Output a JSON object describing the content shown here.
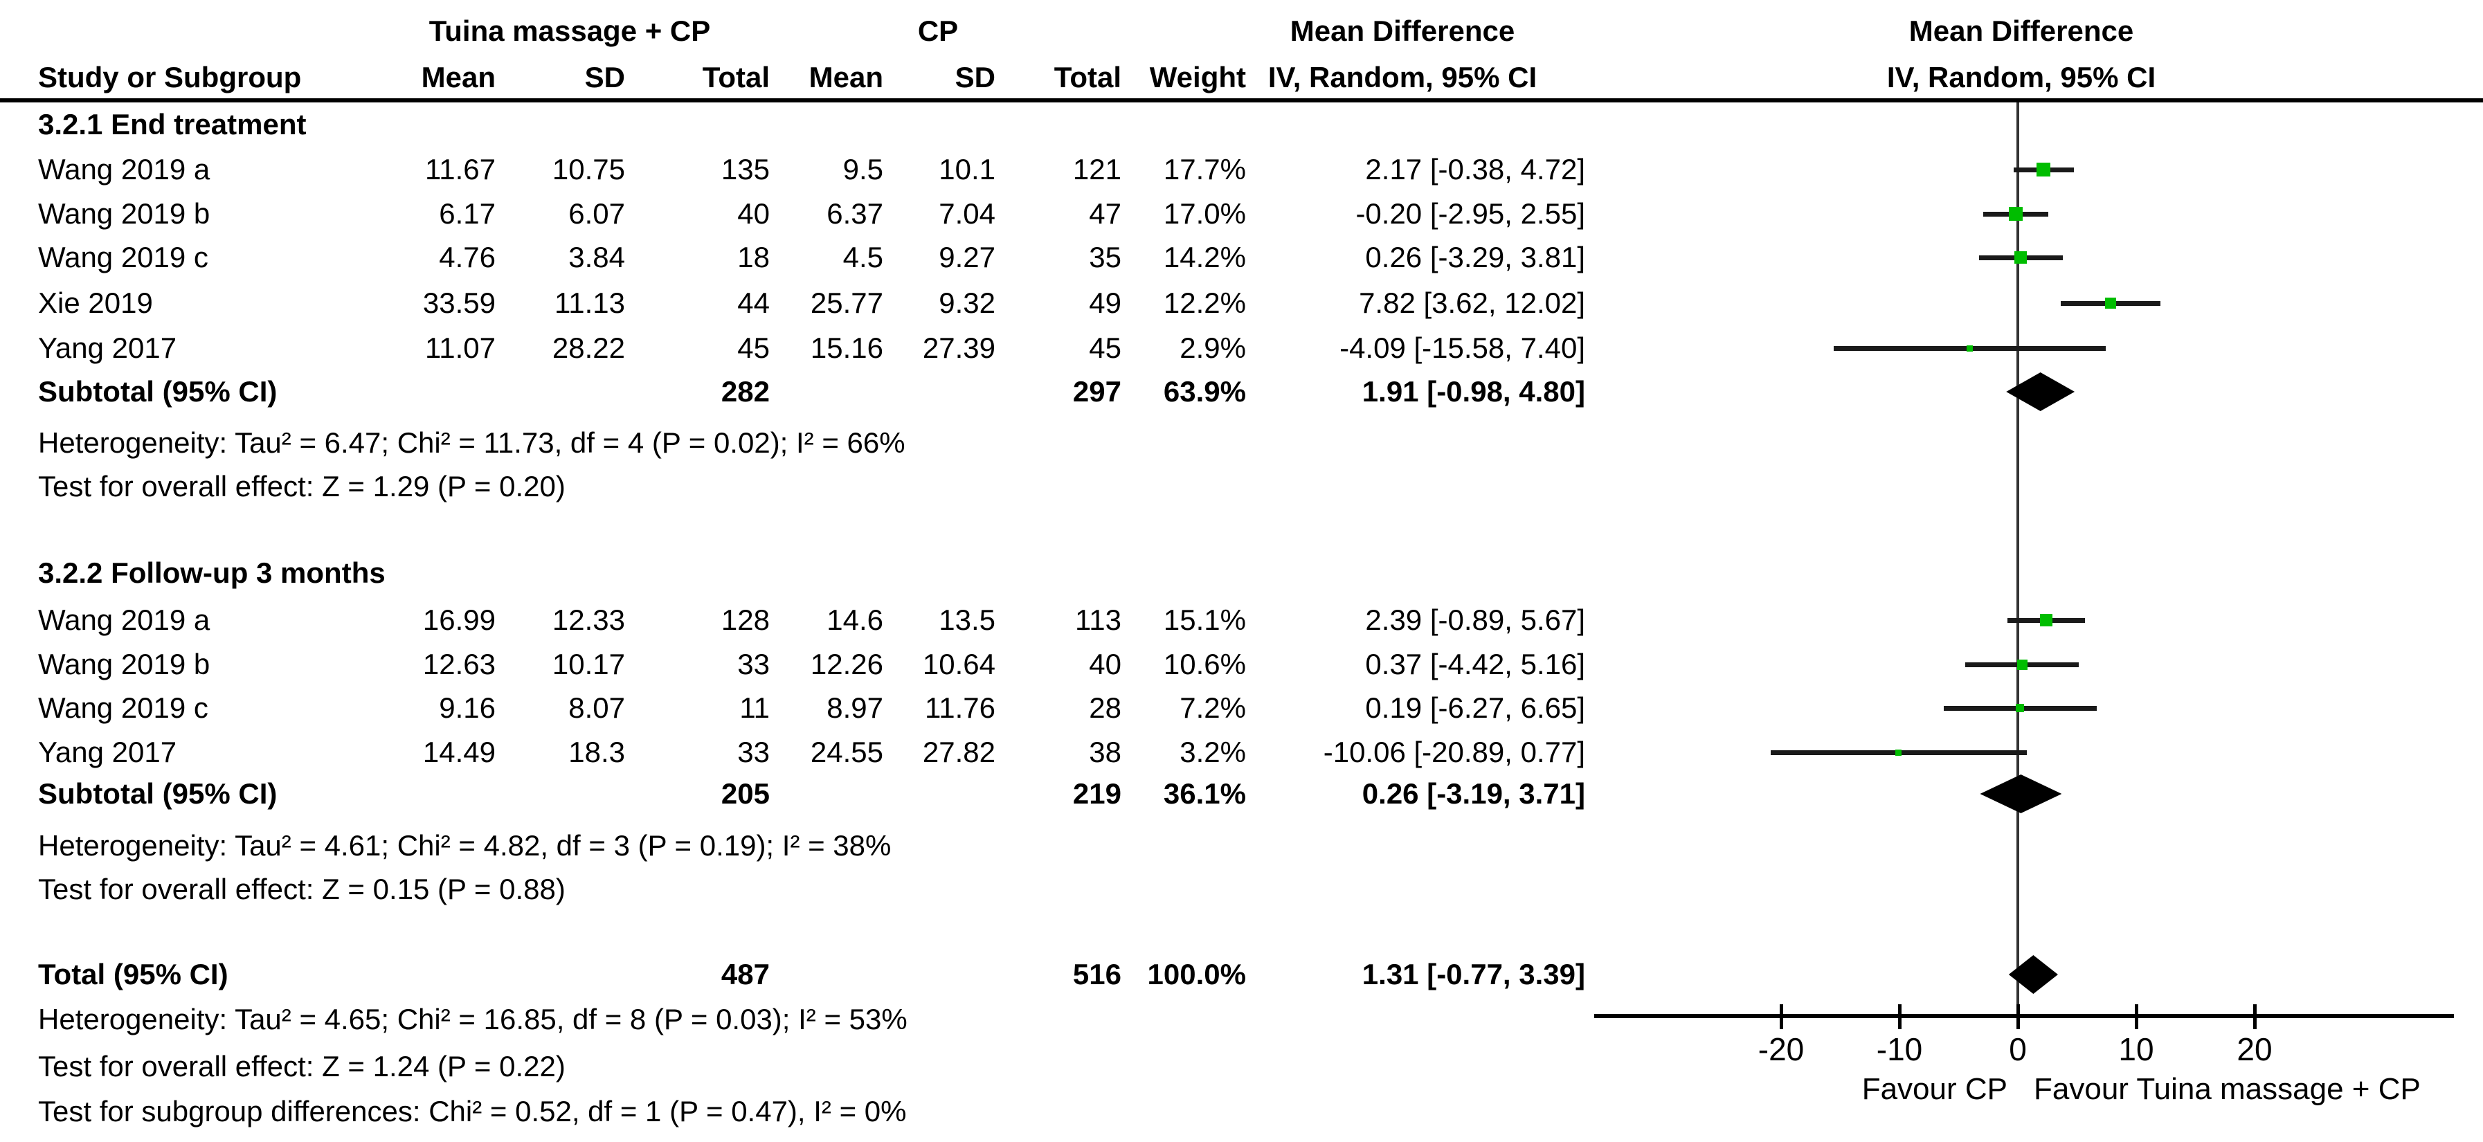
{
  "accent_colors": {
    "marker": "#00bd00",
    "diamond": "#000000",
    "line": "#1a1a1a"
  },
  "header": {
    "group_treatment": "Tuina massage + CP",
    "group_control": "CP",
    "group_effect": "Mean Difference",
    "study_col": "Study or Subgroup",
    "cols_treatment": [
      "Mean",
      "SD",
      "Total"
    ],
    "cols_control": [
      "Mean",
      "SD",
      "Total"
    ],
    "weight_col": "Weight",
    "effect_col": "IV, Random, 95% CI",
    "plot_title_line1": "Mean Difference",
    "plot_title_line2": "IV, Random, 95% CI"
  },
  "chart_data": {
    "type": "forest",
    "effect_measure": "Mean Difference, IV, Random, 95% CI",
    "axis": {
      "ticks": [
        {
          "v": -20,
          "label": "-20"
        },
        {
          "v": -10,
          "label": "-10"
        },
        {
          "v": 0,
          "label": "0"
        },
        {
          "v": 10,
          "label": "10"
        },
        {
          "v": 20,
          "label": "20"
        }
      ],
      "favour_left": "Favour CP",
      "favour_right": "Favour Tuina massage + CP"
    },
    "sections": [
      {
        "title": "3.2.1 End treatment",
        "studies": [
          {
            "name": "Wang 2019 a",
            "mean1": "11.67",
            "sd1": "10.75",
            "total1": "135",
            "mean2": "9.5",
            "sd2": "10.1",
            "total2": "121",
            "weight": "17.7%",
            "w": 17.7,
            "ci_text": "2.17 [-0.38, 4.72]",
            "md": 2.17,
            "lo": -0.38,
            "hi": 4.72
          },
          {
            "name": "Wang 2019 b",
            "mean1": "6.17",
            "sd1": "6.07",
            "total1": "40",
            "mean2": "6.37",
            "sd2": "7.04",
            "total2": "47",
            "weight": "17.0%",
            "w": 17.0,
            "ci_text": "-0.20 [-2.95, 2.55]",
            "md": -0.2,
            "lo": -2.95,
            "hi": 2.55
          },
          {
            "name": "Wang 2019 c",
            "mean1": "4.76",
            "sd1": "3.84",
            "total1": "18",
            "mean2": "4.5",
            "sd2": "9.27",
            "total2": "35",
            "weight": "14.2%",
            "w": 14.2,
            "ci_text": "0.26 [-3.29, 3.81]",
            "md": 0.26,
            "lo": -3.29,
            "hi": 3.81
          },
          {
            "name": "Xie 2019",
            "mean1": "33.59",
            "sd1": "11.13",
            "total1": "44",
            "mean2": "25.77",
            "sd2": "9.32",
            "total2": "49",
            "weight": "12.2%",
            "w": 12.2,
            "ci_text": "7.82 [3.62, 12.02]",
            "md": 7.82,
            "lo": 3.62,
            "hi": 12.02
          },
          {
            "name": "Yang 2017",
            "mean1": "11.07",
            "sd1": "28.22",
            "total1": "45",
            "mean2": "15.16",
            "sd2": "27.39",
            "total2": "45",
            "weight": "2.9%",
            "w": 2.9,
            "ci_text": "-4.09 [-15.58, 7.40]",
            "md": -4.09,
            "lo": -15.58,
            "hi": 7.4
          }
        ],
        "subtotal": {
          "label": "Subtotal (95% CI)",
          "total1": "282",
          "total2": "297",
          "weight": "63.9%",
          "ci_text": "1.91 [-0.98, 4.80]",
          "md": 1.91,
          "lo": -0.98,
          "hi": 4.8
        },
        "heterogeneity": "Heterogeneity: Tau² = 6.47; Chi² = 11.73, df = 4 (P = 0.02); I² = 66%",
        "overall_effect": "Test for overall effect: Z = 1.29 (P = 0.20)"
      },
      {
        "title": "3.2.2 Follow-up 3 months",
        "studies": [
          {
            "name": "Wang 2019 a",
            "mean1": "16.99",
            "sd1": "12.33",
            "total1": "128",
            "mean2": "14.6",
            "sd2": "13.5",
            "total2": "113",
            "weight": "15.1%",
            "w": 15.1,
            "ci_text": "2.39 [-0.89, 5.67]",
            "md": 2.39,
            "lo": -0.89,
            "hi": 5.67
          },
          {
            "name": "Wang 2019 b",
            "mean1": "12.63",
            "sd1": "10.17",
            "total1": "33",
            "mean2": "12.26",
            "sd2": "10.64",
            "total2": "40",
            "weight": "10.6%",
            "w": 10.6,
            "ci_text": "0.37 [-4.42, 5.16]",
            "md": 0.37,
            "lo": -4.42,
            "hi": 5.16
          },
          {
            "name": "Wang 2019 c",
            "mean1": "9.16",
            "sd1": "8.07",
            "total1": "11",
            "mean2": "8.97",
            "sd2": "11.76",
            "total2": "28",
            "weight": "7.2%",
            "w": 7.2,
            "ci_text": "0.19 [-6.27, 6.65]",
            "md": 0.19,
            "lo": -6.27,
            "hi": 6.65
          },
          {
            "name": "Yang 2017",
            "mean1": "14.49",
            "sd1": "18.3",
            "total1": "33",
            "mean2": "24.55",
            "sd2": "27.82",
            "total2": "38",
            "weight": "3.2%",
            "w": 3.2,
            "ci_text": "-10.06 [-20.89, 0.77]",
            "md": -10.06,
            "lo": -20.89,
            "hi": 0.77
          }
        ],
        "subtotal": {
          "label": "Subtotal (95% CI)",
          "total1": "205",
          "total2": "219",
          "weight": "36.1%",
          "ci_text": "0.26 [-3.19, 3.71]",
          "md": 0.26,
          "lo": -3.19,
          "hi": 3.71
        },
        "heterogeneity": "Heterogeneity: Tau² = 4.61; Chi² = 4.82, df = 3 (P = 0.19); I² = 38%",
        "overall_effect": "Test for overall effect: Z = 0.15 (P = 0.88)"
      }
    ],
    "total": {
      "label": "Total (95% CI)",
      "total1": "487",
      "total2": "516",
      "weight": "100.0%",
      "ci_text": "1.31 [-0.77, 3.39]",
      "md": 1.31,
      "lo": -0.77,
      "hi": 3.39
    },
    "total_heterogeneity": "Heterogeneity: Tau² = 4.65; Chi² = 16.85, df = 8 (P = 0.03); I² = 53%",
    "total_overall_effect": "Test for overall effect: Z = 1.24 (P = 0.22)",
    "subgroup_differences": "Test for subgroup differences: Chi² = 0.52, df = 1 (P = 0.47), I² = 0%"
  }
}
